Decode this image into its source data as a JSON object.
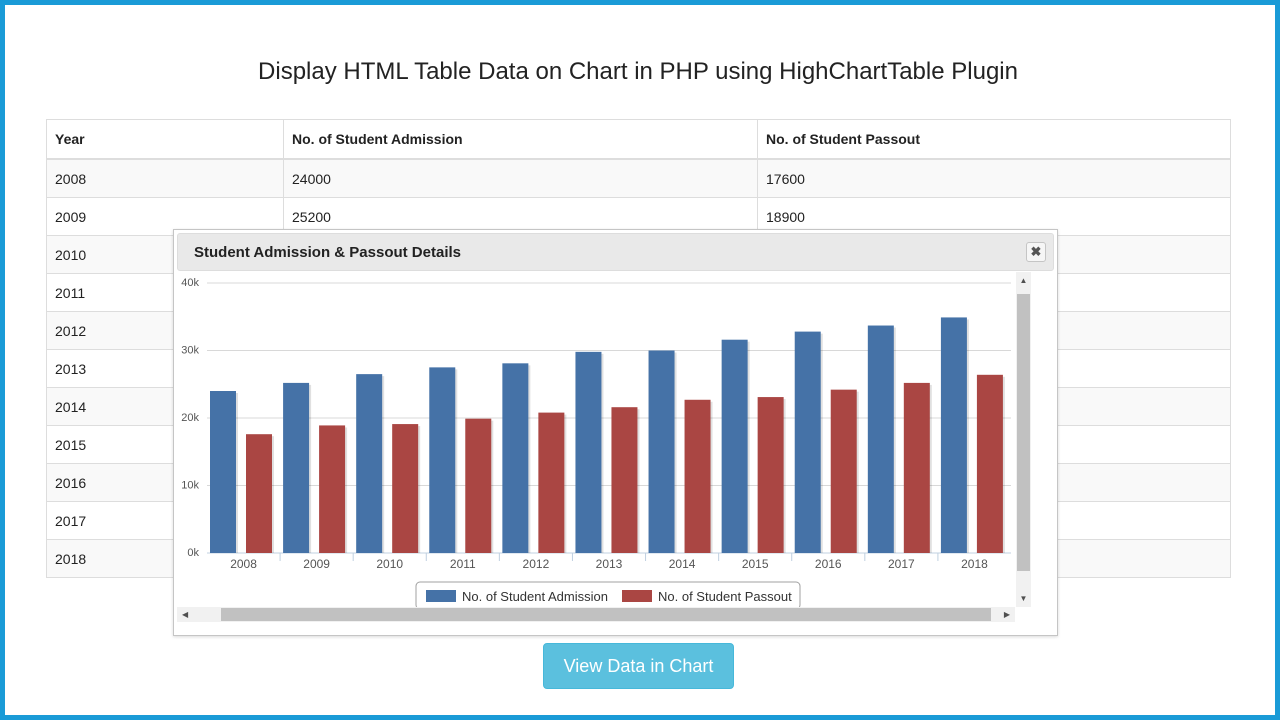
{
  "page": {
    "title": "Display HTML Table Data on Chart in PHP using HighChartTable Plugin"
  },
  "table": {
    "headers": [
      "Year",
      "No. of Student Admission",
      "No. of Student Passout"
    ],
    "rows": [
      [
        "2008",
        "24000",
        "17600"
      ],
      [
        "2009",
        "25200",
        "18900"
      ],
      [
        "2010",
        "",
        ""
      ],
      [
        "2011",
        "",
        ""
      ],
      [
        "2012",
        "",
        ""
      ],
      [
        "2013",
        "",
        ""
      ],
      [
        "2014",
        "",
        ""
      ],
      [
        "2015",
        "",
        ""
      ],
      [
        "2016",
        "",
        ""
      ],
      [
        "2017",
        "",
        ""
      ],
      [
        "2018",
        "",
        ""
      ]
    ]
  },
  "dialog": {
    "title": "Student Admission & Passout Details",
    "close_icon": "close-icon"
  },
  "button": {
    "label": "View Data in Chart"
  },
  "colors": {
    "series_admission": "#4572a7",
    "series_passout": "#aa4643",
    "button": "#5bc0de",
    "frame": "#1a9bd7"
  },
  "chart_data": {
    "type": "bar",
    "title": "",
    "xlabel": "",
    "ylabel": "",
    "categories": [
      "2008",
      "2009",
      "2010",
      "2011",
      "2012",
      "2013",
      "2014",
      "2015",
      "2016",
      "2017",
      "2018"
    ],
    "series": [
      {
        "name": "No. of Student Admission",
        "color": "#4572a7",
        "values": [
          24000,
          25200,
          26500,
          27500,
          28100,
          29800,
          30000,
          31600,
          32800,
          33700,
          34900
        ]
      },
      {
        "name": "No. of Student Passout",
        "color": "#aa4643",
        "values": [
          17600,
          18900,
          19100,
          19900,
          20800,
          21600,
          22700,
          23100,
          24200,
          25200,
          26400
        ]
      }
    ],
    "ylim": [
      0,
      40000
    ],
    "yticks": [
      "0k",
      "10k",
      "20k",
      "30k",
      "40k"
    ],
    "grid": true,
    "legend": "bottom-center"
  }
}
